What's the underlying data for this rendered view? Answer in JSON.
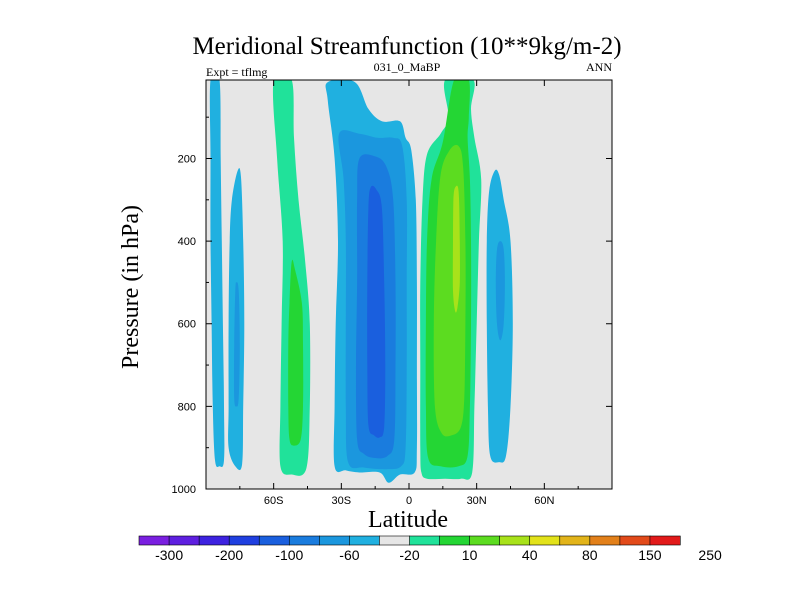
{
  "chart_data": {
    "type": "contour",
    "title": "Meridional Streamfunction (10**9kg/m-2)",
    "left_label": "Expt = tflmg",
    "center_label": "031_0_MaBP",
    "right_label": "ANN",
    "xlabel": "Latitude",
    "ylabel": "Pressure (in hPa)",
    "xlim": [
      -90,
      90
    ],
    "ylim": [
      1000,
      10
    ],
    "x_ticks": [
      {
        "value": -60,
        "label": "60S"
      },
      {
        "value": -30,
        "label": "30S"
      },
      {
        "value": 0,
        "label": "0"
      },
      {
        "value": 30,
        "label": "30N"
      },
      {
        "value": 60,
        "label": "60N"
      }
    ],
    "y_ticks": [
      {
        "value": 200,
        "label": "200"
      },
      {
        "value": 400,
        "label": "400"
      },
      {
        "value": 600,
        "label": "600"
      },
      {
        "value": 800,
        "label": "800"
      },
      {
        "value": 1000,
        "label": "1000"
      }
    ],
    "background_color": "#e6e6e6",
    "colorbar": {
      "labels": [
        "-300",
        "-200",
        "-100",
        "-60",
        "-20",
        "10",
        "40",
        "80",
        "150",
        "250"
      ],
      "colors": [
        "#7a1fe0",
        "#5e1fe0",
        "#3d22e0",
        "#1f3fe0",
        "#1a5fde",
        "#1a7cde",
        "#1b97de",
        "#20b0e0",
        "#e6e6e6",
        "#20e29a",
        "#24d634",
        "#5cdc20",
        "#a8e21a",
        "#e2e21a",
        "#e2b41a",
        "#e2801a",
        "#e24a1a",
        "#e21a1a"
      ]
    },
    "regions": [
      {
        "name": "neg-cell-far-south-a",
        "value": -10,
        "color": "#20b0e0",
        "outline": [
          [
            -88,
            10
          ],
          [
            -84,
            10
          ],
          [
            -83.5,
            200
          ],
          [
            -83,
            400
          ],
          [
            -82.5,
            600
          ],
          [
            -82,
            800
          ],
          [
            -82,
            930
          ],
          [
            -84,
            945
          ],
          [
            -86,
            930
          ],
          [
            -87,
            800
          ],
          [
            -87.5,
            600
          ],
          [
            -88,
            400
          ],
          [
            -88,
            200
          ]
        ]
      },
      {
        "name": "neg-cell-far-south-b",
        "value": -10,
        "color": "#20b0e0",
        "outline": [
          [
            -76,
            230
          ],
          [
            -74.5,
            245
          ],
          [
            -73.5,
            400
          ],
          [
            -73,
            600
          ],
          [
            -73.5,
            800
          ],
          [
            -74,
            940
          ],
          [
            -77,
            945
          ],
          [
            -80,
            900
          ],
          [
            -80,
            800
          ],
          [
            -80,
            600
          ],
          [
            -79.5,
            400
          ],
          [
            -78.5,
            300
          ]
        ]
      },
      {
        "name": "neg-cell-far-south-b-inner",
        "value": -20,
        "color": "#1b97de",
        "outline": [
          [
            -76.5,
            500
          ],
          [
            -75.5,
            520
          ],
          [
            -75,
            650
          ],
          [
            -75.5,
            780
          ],
          [
            -76.5,
            800
          ],
          [
            -77.5,
            780
          ],
          [
            -77.5,
            650
          ],
          [
            -77,
            520
          ]
        ]
      },
      {
        "name": "pos-cell-south-outer",
        "value": 5,
        "color": "#20e29a",
        "outline": [
          [
            -60,
            10
          ],
          [
            -52,
            10
          ],
          [
            -51,
            150
          ],
          [
            -49,
            300
          ],
          [
            -46,
            450
          ],
          [
            -44,
            600
          ],
          [
            -44,
            800
          ],
          [
            -45.5,
            950
          ],
          [
            -52,
            965
          ],
          [
            -57,
            945
          ],
          [
            -57,
            800
          ],
          [
            -56.5,
            600
          ],
          [
            -56,
            400
          ],
          [
            -58.5,
            200
          ]
        ]
      },
      {
        "name": "pos-cell-south-inner",
        "value": 10,
        "color": "#24d634",
        "outline": [
          [
            -52,
            450
          ],
          [
            -50.5,
            470
          ],
          [
            -47.5,
            550
          ],
          [
            -47,
            650
          ],
          [
            -47,
            800
          ],
          [
            -48,
            880
          ],
          [
            -51,
            895
          ],
          [
            -53,
            880
          ],
          [
            -53.5,
            800
          ],
          [
            -53.5,
            650
          ],
          [
            -53,
            550
          ]
        ]
      },
      {
        "name": "neg-hadley-south-outer",
        "value": -10,
        "color": "#20b0e0",
        "outline": [
          [
            -36,
            15
          ],
          [
            -24,
            15
          ],
          [
            -18,
            80
          ],
          [
            -12,
            110
          ],
          [
            -4,
            110
          ],
          [
            -1.5,
            150
          ],
          [
            1,
            180
          ],
          [
            3,
            300
          ],
          [
            3.5,
            500
          ],
          [
            3.5,
            700
          ],
          [
            3.5,
            900
          ],
          [
            2.5,
            960
          ],
          [
            -4,
            965
          ],
          [
            -9,
            985
          ],
          [
            -13,
            960
          ],
          [
            -22,
            960
          ],
          [
            -28,
            955
          ],
          [
            -33,
            945
          ],
          [
            -33,
            800
          ],
          [
            -32.5,
            600
          ],
          [
            -31.5,
            400
          ],
          [
            -33,
            200
          ],
          [
            -36,
            60
          ]
        ]
      },
      {
        "name": "neg-hadley-south-mid",
        "value": -20,
        "color": "#1b97de",
        "outline": [
          [
            -31,
            140
          ],
          [
            -22,
            140
          ],
          [
            -14,
            150
          ],
          [
            -7,
            150
          ],
          [
            -3,
            170
          ],
          [
            -1,
            300
          ],
          [
            -1,
            500
          ],
          [
            -1,
            700
          ],
          [
            -1.5,
            900
          ],
          [
            -3.5,
            945
          ],
          [
            -10,
            952
          ],
          [
            -20,
            948
          ],
          [
            -27,
            935
          ],
          [
            -28,
            800
          ],
          [
            -28,
            600
          ],
          [
            -28,
            400
          ],
          [
            -29,
            250
          ]
        ]
      },
      {
        "name": "neg-hadley-south-in1",
        "value": -40,
        "color": "#1a7cde",
        "outline": [
          [
            -22,
            200
          ],
          [
            -15,
            195
          ],
          [
            -10,
            220
          ],
          [
            -7,
            300
          ],
          [
            -6,
            500
          ],
          [
            -6,
            700
          ],
          [
            -6.5,
            880
          ],
          [
            -9.5,
            920
          ],
          [
            -15,
            925
          ],
          [
            -20,
            915
          ],
          [
            -23,
            880
          ],
          [
            -23.5,
            700
          ],
          [
            -23,
            500
          ],
          [
            -23,
            300
          ]
        ]
      },
      {
        "name": "neg-hadley-south-in2",
        "value": -60,
        "color": "#1a5fde",
        "outline": [
          [
            -17,
            270
          ],
          [
            -14.5,
            275
          ],
          [
            -12,
            320
          ],
          [
            -11,
            500
          ],
          [
            -10.5,
            700
          ],
          [
            -11,
            850
          ],
          [
            -13,
            875
          ],
          [
            -15.5,
            870
          ],
          [
            -18,
            845
          ],
          [
            -18.5,
            700
          ],
          [
            -18.5,
            500
          ],
          [
            -18,
            320
          ]
        ]
      },
      {
        "name": "pos-hadley-north-outer",
        "value": 5,
        "color": "#20e29a",
        "outline": [
          [
            16,
            10
          ],
          [
            17.5,
            100
          ],
          [
            14,
            140
          ],
          [
            8,
            190
          ],
          [
            6,
            300
          ],
          [
            5,
            500
          ],
          [
            5,
            700
          ],
          [
            5,
            900
          ],
          [
            5.5,
            960
          ],
          [
            8,
            975
          ],
          [
            16,
            975
          ],
          [
            23,
            975
          ],
          [
            28,
            960
          ],
          [
            29,
            800
          ],
          [
            30,
            600
          ],
          [
            31,
            400
          ],
          [
            32,
            250
          ],
          [
            29,
            150
          ],
          [
            27.5,
            80
          ],
          [
            28.5,
            10
          ]
        ]
      },
      {
        "name": "pos-hadley-north-mid",
        "value": 10,
        "color": "#24d634",
        "outline": [
          [
            20,
            10
          ],
          [
            26.5,
            10
          ],
          [
            26.5,
            100
          ],
          [
            26,
            150
          ],
          [
            27,
            250
          ],
          [
            27.5,
            400
          ],
          [
            27.5,
            600
          ],
          [
            27,
            800
          ],
          [
            26,
            920
          ],
          [
            22,
            945
          ],
          [
            14,
            945
          ],
          [
            8.5,
            925
          ],
          [
            7.5,
            800
          ],
          [
            7.5,
            600
          ],
          [
            8,
            400
          ],
          [
            10,
            250
          ],
          [
            15,
            160
          ]
        ]
      },
      {
        "name": "pos-hadley-north-in1",
        "value": 20,
        "color": "#5cdc20",
        "outline": [
          [
            18,
            180
          ],
          [
            22,
            170
          ],
          [
            24,
            220
          ],
          [
            25,
            400
          ],
          [
            25,
            600
          ],
          [
            24.5,
            780
          ],
          [
            23,
            850
          ],
          [
            19,
            870
          ],
          [
            14.5,
            865
          ],
          [
            11.5,
            800
          ],
          [
            11,
            600
          ],
          [
            12,
            400
          ],
          [
            14,
            240
          ]
        ]
      },
      {
        "name": "pos-hadley-north-in2",
        "value": 30,
        "color": "#a8e21a",
        "outline": [
          [
            20.5,
            270
          ],
          [
            22,
            280
          ],
          [
            22.5,
            400
          ],
          [
            22.5,
            500
          ],
          [
            21.5,
            560
          ],
          [
            20.5,
            570
          ],
          [
            19.5,
            520
          ],
          [
            19.5,
            400
          ],
          [
            19.7,
            300
          ]
        ]
      },
      {
        "name": "neg-cell-north-outer",
        "value": -10,
        "color": "#20b0e0",
        "outline": [
          [
            38,
            230
          ],
          [
            40,
            240
          ],
          [
            42,
            300
          ],
          [
            45,
            400
          ],
          [
            46,
            600
          ],
          [
            45,
            800
          ],
          [
            43,
            920
          ],
          [
            40,
            935
          ],
          [
            36,
            920
          ],
          [
            35,
            800
          ],
          [
            34.5,
            600
          ],
          [
            34.5,
            400
          ],
          [
            35.5,
            280
          ]
        ]
      },
      {
        "name": "neg-cell-north-inner",
        "value": -20,
        "color": "#1b97de",
        "outline": [
          [
            40.5,
            400
          ],
          [
            42,
            420
          ],
          [
            42.5,
            500
          ],
          [
            42,
            600
          ],
          [
            40.5,
            640
          ],
          [
            39,
            600
          ],
          [
            38.5,
            500
          ],
          [
            39,
            420
          ]
        ]
      }
    ]
  }
}
